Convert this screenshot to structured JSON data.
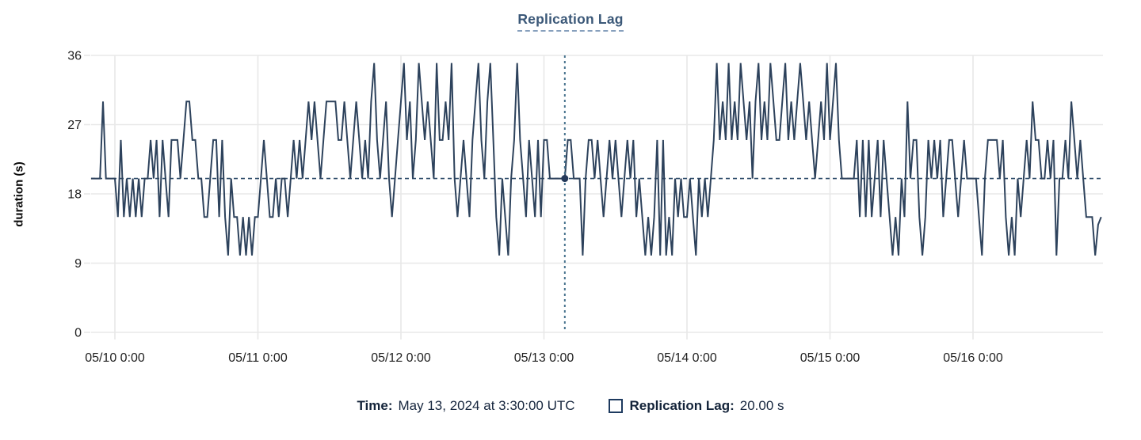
{
  "title": "Replication Lag",
  "axes": {
    "y_label": "duration (s)",
    "y_ticks": [
      0,
      9,
      18,
      27,
      36
    ],
    "x_tick_labels": [
      "05/10 0:00",
      "05/11 0:00",
      "05/12 0:00",
      "05/13 0:00",
      "05/14 0:00",
      "05/15 0:00",
      "05/16 0:00"
    ]
  },
  "tooltip": {
    "time_label": "Time:",
    "time_value": "May 13, 2024 at 3:30:00 UTC",
    "series_label": "Replication Lag:",
    "series_value": "20.00 s"
  },
  "colors": {
    "series": "#2d425c",
    "reference_line": "#2c4a68",
    "crosshair": "#45718c",
    "marker": "#24395a",
    "grid": "#e8e8e8",
    "tick_text": "#1f1f1f",
    "title": "#3b5878",
    "title_underline": "#87a0bd",
    "readout_text": "#14243a",
    "swatch_border": "#1d3a5f"
  },
  "chart_data": {
    "type": "line",
    "title": "Replication Lag",
    "xlabel": "",
    "ylabel": "duration (s)",
    "ylim": [
      0,
      36
    ],
    "y_ticks": [
      0,
      9,
      18,
      27,
      36
    ],
    "x_tick_labels": [
      "05/10 0:00",
      "05/11 0:00",
      "05/12 0:00",
      "05/13 0:00",
      "05/14 0:00",
      "05/15 0:00",
      "05/16 0:00"
    ],
    "grid": true,
    "legend": {
      "position": "bottom",
      "entries": [
        "Replication Lag"
      ]
    },
    "reference_line": {
      "value": 20
    },
    "crosshair": {
      "time": "May 13, 2024 at 3:30:00 UTC",
      "hours_from_0510": 75.5,
      "value": 20.0
    },
    "series": [
      {
        "name": "Replication Lag",
        "unit": "s",
        "start": "2024-05-09 20:00 UTC",
        "interval_minutes": 30,
        "values": [
          20,
          20,
          20,
          20,
          30,
          20,
          20,
          20,
          20,
          15,
          25,
          15,
          20,
          15,
          20,
          15,
          20,
          15,
          20,
          20,
          25,
          20,
          25,
          15,
          25,
          20,
          15,
          25,
          25,
          25,
          20,
          25,
          30,
          30,
          25,
          25,
          20,
          20,
          15,
          15,
          20,
          25,
          25,
          15,
          25,
          15,
          10,
          20,
          15,
          15,
          10,
          15,
          10,
          15,
          10,
          15,
          15,
          20,
          25,
          20,
          15,
          15,
          20,
          15,
          20,
          20,
          15,
          20,
          25,
          20,
          25,
          20,
          25,
          30,
          25,
          30,
          25,
          20,
          25,
          30,
          30,
          30,
          30,
          25,
          25,
          30,
          25,
          20,
          25,
          30,
          25,
          20,
          25,
          20,
          30,
          35,
          25,
          20,
          25,
          30,
          20,
          15,
          20,
          25,
          30,
          35,
          25,
          30,
          20,
          25,
          35,
          30,
          25,
          30,
          25,
          20,
          35,
          25,
          25,
          30,
          25,
          35,
          20,
          15,
          20,
          25,
          20,
          15,
          25,
          30,
          35,
          25,
          20,
          30,
          35,
          25,
          15,
          10,
          20,
          15,
          10,
          20,
          25,
          35,
          25,
          20,
          15,
          25,
          20,
          15,
          25,
          15,
          25,
          25,
          20,
          20,
          20,
          20,
          20,
          20,
          25,
          25,
          20,
          20,
          20,
          10,
          20,
          25,
          25,
          20,
          25,
          20,
          15,
          20,
          25,
          20,
          25,
          20,
          15,
          20,
          25,
          20,
          25,
          15,
          20,
          15,
          10,
          15,
          10,
          15,
          25,
          10,
          25,
          10,
          15,
          10,
          20,
          15,
          20,
          15,
          15,
          20,
          15,
          10,
          20,
          15,
          20,
          15,
          20,
          25,
          35,
          25,
          30,
          25,
          35,
          25,
          30,
          25,
          35,
          30,
          25,
          30,
          20,
          30,
          35,
          25,
          30,
          25,
          35,
          30,
          25,
          25,
          30,
          35,
          25,
          30,
          25,
          30,
          35,
          30,
          25,
          30,
          25,
          20,
          25,
          30,
          25,
          35,
          25,
          30,
          35,
          25,
          20,
          20,
          20,
          20,
          20,
          25,
          15,
          25,
          15,
          25,
          15,
          20,
          25,
          15,
          25,
          20,
          15,
          10,
          15,
          10,
          20,
          15,
          30,
          20,
          25,
          25,
          15,
          10,
          15,
          25,
          20,
          25,
          20,
          25,
          15,
          20,
          25,
          25,
          20,
          15,
          20,
          25,
          20,
          20,
          20,
          20,
          15,
          10,
          20,
          25,
          25,
          25,
          25,
          20,
          25,
          15,
          10,
          15,
          10,
          20,
          15,
          20,
          25,
          20,
          30,
          25,
          25,
          20,
          20,
          25,
          20,
          25,
          10,
          20,
          20,
          25,
          20,
          30,
          25,
          20,
          25,
          20,
          15,
          15,
          15,
          10,
          14,
          15
        ]
      }
    ]
  }
}
